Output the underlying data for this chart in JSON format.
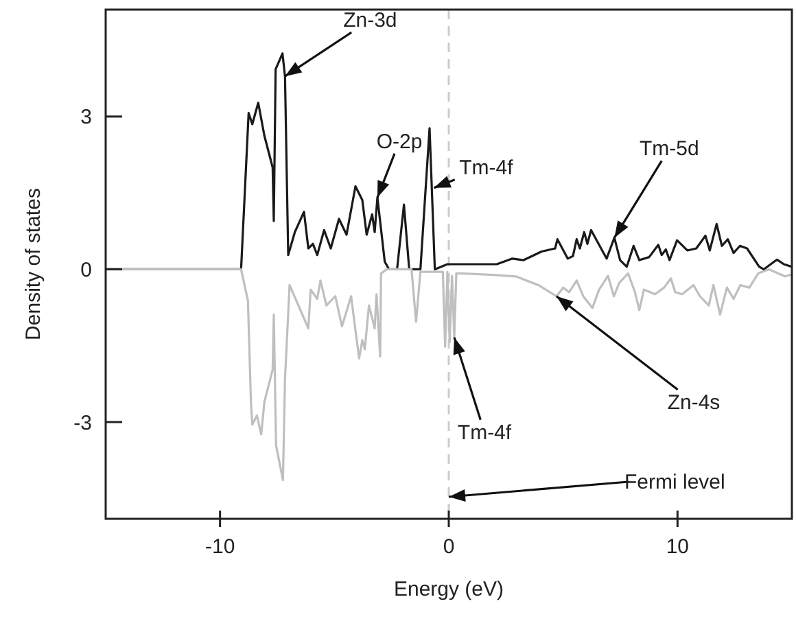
{
  "chart_data": {
    "type": "line",
    "xlabel": "Energy (eV)",
    "ylabel": "Density of states",
    "xlim": [
      -15,
      15
    ],
    "ylim": [
      -4.9,
      5.1
    ],
    "xticks": [
      -10,
      0,
      10
    ],
    "yticks": [
      -3,
      0,
      3
    ],
    "grid": false,
    "marker": "none",
    "line_style": "solid",
    "series": [
      {
        "color": "#1a1a1a",
        "x": [
          -15,
          -9.08,
          -8.75,
          -8.59,
          -8.33,
          -8.06,
          -7.7,
          -7.65,
          -7.57,
          -7.27,
          -7.16,
          -7.02,
          -6.73,
          -6.33,
          -6.14,
          -5.94,
          -5.75,
          -5.45,
          -5.16,
          -4.8,
          -4.47,
          -4.08,
          -3.78,
          -3.59,
          -3.35,
          -3.24,
          -3.12,
          -2.8,
          -2.61,
          -2.26,
          -1.96,
          -1.73,
          -1.24,
          -0.84,
          -0.61,
          -0.06,
          0.73,
          2.1,
          2.78,
          3.27,
          4.06,
          4.65,
          4.75,
          5.2,
          5.43,
          5.59,
          5.73,
          5.92,
          6.06,
          6.22,
          6.9,
          7.24,
          7.49,
          7.78,
          8.08,
          8.33,
          8.76,
          9.16,
          9.31,
          9.49,
          9.65,
          9.98,
          10.43,
          10.82,
          11.22,
          11.41,
          11.71,
          11.94,
          12.2,
          12.45,
          12.73,
          13.04,
          13.57,
          13.77,
          14.35,
          14.65,
          15
        ],
        "values": [
          0,
          0,
          3.07,
          2.85,
          3.27,
          2.62,
          2.0,
          0.95,
          3.93,
          4.24,
          3.79,
          0.28,
          0.73,
          1.13,
          0.41,
          0.5,
          0.28,
          0.77,
          0.41,
          0.99,
          0.68,
          1.63,
          1.36,
          0.68,
          1.08,
          0.73,
          1.41,
          0.15,
          0,
          0,
          1.27,
          0,
          0,
          2.77,
          0,
          0.1,
          0.1,
          0.1,
          0.21,
          0.18,
          0.35,
          0.41,
          0.59,
          0.21,
          0.26,
          0.59,
          0.41,
          0.73,
          0.5,
          0.77,
          0.21,
          0.62,
          0.18,
          0.05,
          0.46,
          0.18,
          0.24,
          0.48,
          0.28,
          0.39,
          0.18,
          0.57,
          0.37,
          0.41,
          0.66,
          0.37,
          0.89,
          0.46,
          0.59,
          0.32,
          0.46,
          0.41,
          0.05,
          0,
          0.19,
          0.1,
          0.05
        ]
      },
      {
        "color": "#bfbfbf",
        "x": [
          -15,
          -9.08,
          -8.78,
          -8.65,
          -8.59,
          -8.39,
          -8.2,
          -8.06,
          -7.7,
          -7.65,
          -7.55,
          -7.25,
          -7.16,
          -6.96,
          -6.14,
          -6.04,
          -5.75,
          -5.61,
          -5.35,
          -4.96,
          -4.67,
          -4.27,
          -3.92,
          -3.78,
          -3.67,
          -3.49,
          -3.24,
          -3.16,
          -3.0,
          -2.96,
          -2.71,
          -1.63,
          -1.43,
          -1.24,
          -0.26,
          -0.16,
          -0.06,
          0.04,
          0.14,
          0.24,
          0.33,
          0.53,
          1.96,
          2.94,
          3.92,
          4.71,
          5.0,
          5.26,
          5.59,
          5.88,
          6.28,
          6.57,
          6.96,
          7.22,
          7.45,
          7.84,
          8.14,
          8.33,
          8.53,
          9.02,
          9.41,
          9.71,
          9.9,
          10.2,
          10.7,
          10.98,
          11.37,
          11.57,
          11.86,
          12.16,
          12.45,
          12.75,
          13.14,
          13.53,
          14.0,
          14.7,
          15
        ],
        "values": [
          0,
          0,
          -0.62,
          -2.6,
          -3.05,
          -2.87,
          -3.24,
          -2.6,
          -1.97,
          -0.89,
          -3.46,
          -4.14,
          -2.15,
          -0.31,
          -1.16,
          -0.4,
          -0.58,
          -0.22,
          -0.71,
          -0.53,
          -1.12,
          -0.53,
          -1.75,
          -1.39,
          -1.57,
          -0.71,
          -1.16,
          -0.49,
          -1.71,
          -0.08,
          0,
          0,
          -1.03,
          -0.05,
          -0.05,
          -1.52,
          -0.05,
          -1.43,
          -0.13,
          -1.34,
          -0.08,
          -0.08,
          -0.11,
          -0.14,
          -0.31,
          -0.53,
          -0.36,
          -0.45,
          -0.22,
          -0.53,
          -0.76,
          -0.4,
          -0.13,
          -0.53,
          -0.27,
          -0.08,
          -0.45,
          -0.8,
          -0.4,
          -0.49,
          -0.36,
          -0.18,
          -0.45,
          -0.49,
          -0.31,
          -0.53,
          -0.71,
          -0.31,
          -0.89,
          -0.36,
          -0.58,
          -0.31,
          -0.36,
          -0.08,
          0,
          -0.14,
          -0.1
        ]
      }
    ],
    "ref_lines": [
      {
        "axis": "x",
        "value": 0,
        "label": "Fermi level",
        "color": "#cccccc",
        "line_style": "dashed"
      }
    ],
    "annotations": [
      {
        "text": "Zn-3d",
        "x": -7.16,
        "y": 3.79
      },
      {
        "text": "O-2p",
        "x": -3.12,
        "y": 1.41
      },
      {
        "text": "Tm-4f",
        "x": -0.65,
        "y": 1.6
      },
      {
        "text": "Tm-5d",
        "x": 7.24,
        "y": 0.62
      },
      {
        "text": "Zn-4s",
        "x": 4.71,
        "y": -0.53
      },
      {
        "text": "Tm-4f",
        "x": 0.24,
        "y": -1.34
      }
    ]
  }
}
